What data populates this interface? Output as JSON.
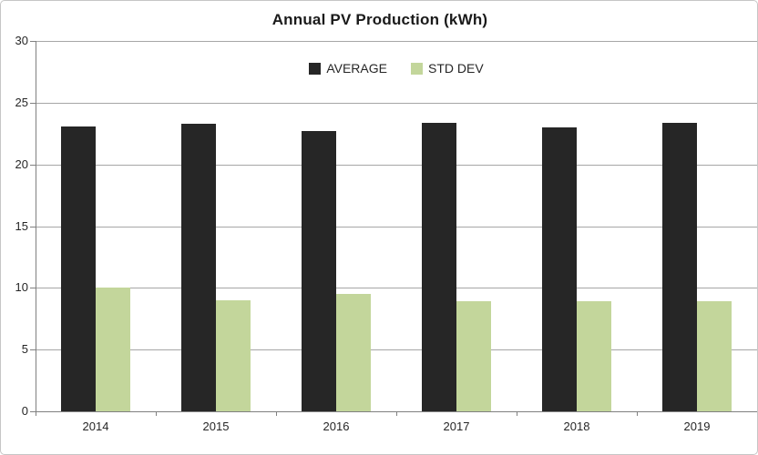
{
  "chart_data": {
    "type": "bar",
    "title": "Annual PV Production (kWh)",
    "categories": [
      "2014",
      "2015",
      "2016",
      "2017",
      "2018",
      "2019"
    ],
    "series": [
      {
        "name": "AVERAGE",
        "color": "#262626",
        "values": [
          23.1,
          23.3,
          22.7,
          23.4,
          23.0,
          23.4
        ]
      },
      {
        "name": "STD DEV",
        "color": "#c3d69b",
        "values": [
          10.0,
          9.0,
          9.5,
          8.9,
          8.9,
          8.9
        ]
      }
    ],
    "xlabel": "",
    "ylabel": "",
    "ylim": [
      0,
      30
    ],
    "yticks": [
      0,
      5,
      10,
      15,
      20,
      25,
      30
    ],
    "grid": "horizontal",
    "legend_position": "top-center-inside"
  },
  "colors": {
    "gridline": "#a6a6a6",
    "axis": "#808080",
    "text": "#262626",
    "background": "#ffffff",
    "border": "#c6c6c6"
  }
}
